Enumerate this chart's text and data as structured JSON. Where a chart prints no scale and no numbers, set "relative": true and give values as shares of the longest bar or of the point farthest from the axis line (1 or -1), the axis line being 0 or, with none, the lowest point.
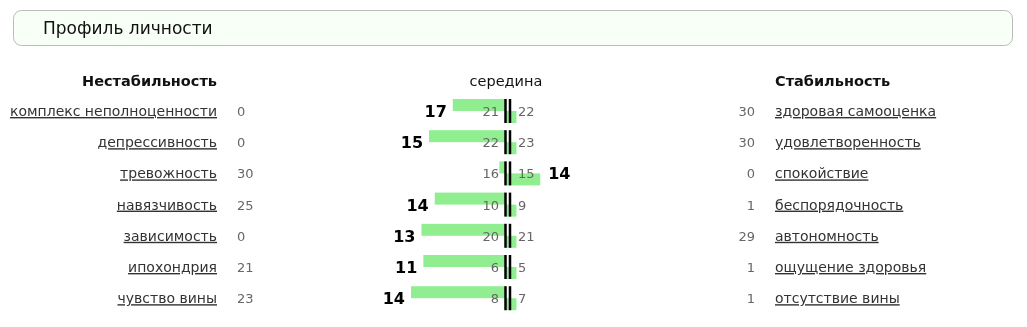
{
  "chart_data": {
    "type": "bar",
    "orientation": "horizontal",
    "relative": true,
    "title": "Профиль личности",
    "categories": [
      "комплекс неполноценности",
      "депрессивность",
      "тревожность",
      "навязчивость",
      "зависимость",
      "ипохондрия",
      "чувство вины"
    ],
    "series": [
      {
        "color": "#90ee90",
        "values": [
          -0.56,
          -0.81,
          -0.07,
          -0.75,
          -0.89,
          -0.87,
          -1
        ]
      },
      {
        "color": "#90ee90",
        "values": [
          0.11,
          0.11,
          0.36,
          0.11,
          0.11,
          0.11,
          0.11
        ]
      }
    ],
    "annotations": [
      "Нестабильность",
      "середина",
      "Стабильность",
      "17",
      "0",
      "21",
      "22",
      "30",
      "здоровая самооценка",
      "15",
      "0",
      "22",
      "23",
      "30",
      "удовлетворенность",
      "14",
      "30",
      "16",
      "15",
      "0",
      "спокойствие",
      "14",
      "25",
      "10",
      "9",
      "1",
      "беспорядочность",
      "13",
      "0",
      "20",
      "21",
      "29",
      "автономность",
      "11",
      "21",
      "6",
      "5",
      "1",
      "ощущение здоровья",
      "14",
      "23",
      "8",
      "7",
      "1",
      "отсутствие вины"
    ]
  }
}
